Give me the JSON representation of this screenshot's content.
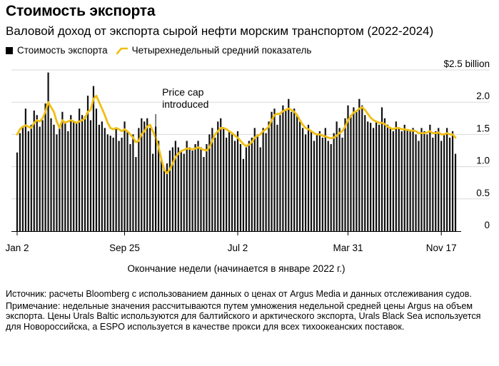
{
  "chart_data": {
    "type": "bar",
    "title": "Стоимость экспорта",
    "subtitle": "Валовой доход от экспорта сырой нефти морским транспортом (2022-2024)",
    "legend": [
      {
        "label": "Стоимость экспорта",
        "kind": "bar"
      },
      {
        "label": "Четырехнедельный средний показатель",
        "kind": "line"
      }
    ],
    "xlabel": "Окончание недели (начинается в январе 2022 г.)",
    "ylabel": "",
    "ylim": [
      0,
      2.5
    ],
    "y_ticks": [
      {
        "value": 0,
        "label": "0"
      },
      {
        "value": 0.5,
        "label": "0.5"
      },
      {
        "value": 1.0,
        "label": "1.0"
      },
      {
        "value": 1.5,
        "label": "1.5"
      },
      {
        "value": 2.0,
        "label": "2.0"
      },
      {
        "value": 2.5,
        "label": "$2.5 billion"
      }
    ],
    "x_ticks": [
      {
        "index": 0,
        "label": "Jan 2"
      },
      {
        "index": 38,
        "label": "Sep 25"
      },
      {
        "index": 78,
        "label": "Jul 2"
      },
      {
        "index": 117,
        "label": "Mar 31"
      },
      {
        "index": 150,
        "label": "Nov 17"
      }
    ],
    "annotation": {
      "index": 49,
      "lines": [
        "Price cap",
        "introduced"
      ]
    },
    "colors": {
      "bar": "#111111",
      "line": "#f0bf14",
      "axis": "#000000",
      "grid": "#d9d9d9"
    },
    "series": [
      {
        "name": "Стоимость экспорта",
        "values": [
          1.22,
          1.52,
          1.62,
          1.9,
          1.55,
          1.65,
          1.87,
          1.8,
          1.62,
          1.72,
          1.98,
          2.46,
          1.75,
          1.65,
          1.5,
          1.6,
          1.85,
          1.7,
          1.55,
          1.8,
          1.7,
          1.68,
          1.9,
          1.8,
          1.78,
          2.1,
          1.72,
          2.25,
          1.9,
          1.65,
          1.7,
          1.6,
          1.5,
          1.48,
          1.45,
          1.6,
          1.4,
          1.45,
          1.7,
          1.55,
          1.35,
          1.5,
          1.15,
          1.6,
          1.75,
          1.7,
          1.75,
          1.6,
          1.2,
          1.62,
          1.4,
          1.12,
          0.98,
          1.05,
          1.25,
          1.3,
          1.4,
          1.3,
          1.25,
          1.2,
          1.4,
          1.3,
          1.25,
          1.35,
          1.4,
          1.3,
          1.15,
          1.35,
          1.5,
          1.6,
          1.45,
          1.7,
          1.75,
          1.6,
          1.45,
          1.55,
          1.5,
          1.4,
          1.55,
          1.35,
          1.12,
          1.3,
          1.4,
          1.45,
          1.6,
          1.5,
          1.3,
          1.6,
          1.52,
          1.7,
          1.85,
          1.9,
          1.65,
          1.8,
          1.95,
          1.88,
          2.05,
          1.85,
          1.9,
          1.8,
          1.7,
          1.6,
          1.5,
          1.65,
          1.55,
          1.4,
          1.5,
          1.55,
          1.45,
          1.6,
          1.4,
          1.35,
          1.52,
          1.7,
          1.6,
          1.45,
          1.75,
          1.95,
          1.8,
          1.92,
          1.85,
          2.05,
          1.95,
          1.8,
          1.7,
          1.68,
          1.6,
          1.7,
          1.65,
          1.92,
          1.75,
          1.65,
          1.6,
          1.55,
          1.7,
          1.6,
          1.55,
          1.65,
          1.58,
          1.55,
          1.6,
          1.5,
          1.4,
          1.6,
          1.55,
          1.5,
          1.65,
          1.45,
          1.55,
          1.6,
          1.4,
          1.5,
          1.6,
          1.45,
          1.55,
          1.2
        ]
      },
      {
        "name": "Четырехнедельный средний показатель",
        "values": [
          1.5,
          1.58,
          1.62,
          1.64,
          1.62,
          1.6,
          1.68,
          1.72,
          1.7,
          1.75,
          1.85,
          2.0,
          1.92,
          1.85,
          1.7,
          1.6,
          1.72,
          1.68,
          1.7,
          1.72,
          1.7,
          1.68,
          1.7,
          1.72,
          1.75,
          1.85,
          1.88,
          2.05,
          2.1,
          2.0,
          1.9,
          1.8,
          1.68,
          1.6,
          1.58,
          1.6,
          1.58,
          1.55,
          1.58,
          1.55,
          1.5,
          1.45,
          1.38,
          1.4,
          1.5,
          1.55,
          1.62,
          1.65,
          1.55,
          1.45,
          1.3,
          1.12,
          0.95,
          0.9,
          0.96,
          1.05,
          1.15,
          1.2,
          1.24,
          1.26,
          1.28,
          1.28,
          1.27,
          1.28,
          1.3,
          1.28,
          1.26,
          1.25,
          1.3,
          1.4,
          1.5,
          1.55,
          1.6,
          1.6,
          1.58,
          1.55,
          1.52,
          1.48,
          1.45,
          1.4,
          1.35,
          1.32,
          1.34,
          1.38,
          1.45,
          1.48,
          1.5,
          1.55,
          1.58,
          1.62,
          1.72,
          1.8,
          1.82,
          1.82,
          1.86,
          1.88,
          1.9,
          1.88,
          1.85,
          1.8,
          1.72,
          1.65,
          1.6,
          1.58,
          1.55,
          1.52,
          1.5,
          1.5,
          1.48,
          1.47,
          1.45,
          1.44,
          1.45,
          1.48,
          1.52,
          1.55,
          1.62,
          1.72,
          1.78,
          1.84,
          1.86,
          1.9,
          1.92,
          1.88,
          1.82,
          1.76,
          1.72,
          1.7,
          1.68,
          1.68,
          1.66,
          1.62,
          1.6,
          1.58,
          1.6,
          1.6,
          1.58,
          1.58,
          1.57,
          1.56,
          1.56,
          1.55,
          1.52,
          1.52,
          1.52,
          1.53,
          1.55,
          1.52,
          1.52,
          1.53,
          1.5,
          1.5,
          1.52,
          1.5,
          1.5,
          1.45
        ]
      }
    ]
  },
  "notes": {
    "source": "Источник: расчеты Bloomberg с использованием данных о ценах от Argus Media и данных отслеживания судов.",
    "note": "Примечание: недельные значения рассчитываются путем умножения недельной средней цены Argus на объем экспорта. Цены Urals Baltic используются для балтийского и арктического экспорта, Urals Black Sea используется для Новороссийска, а ESPO используется в качестве прокси для всех тихоокеанских поставок."
  }
}
